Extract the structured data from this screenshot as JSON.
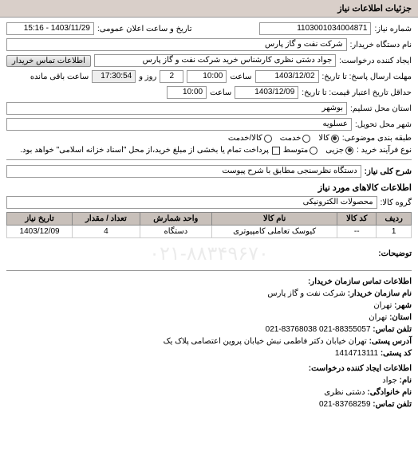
{
  "headerTitle": "جزئیات اطلاعات نیاز",
  "labels": {
    "reqNumber": "شماره نیاز:",
    "announceDate": "تاریخ و ساعت اعلان عمومی:",
    "buyerOrg": "نام دستگاه خریدار:",
    "creator": "ایجاد کننده درخواست:",
    "contactBtn": "اطلاعات تماس خریدار",
    "deadlineFrom": "مهلت ارسال پاسخ: تا تاریخ:",
    "hourWord": "ساعت",
    "dayWord": "روز و",
    "remainWord": "ساعت باقی مانده",
    "validFrom": "حداقل تاریخ اعتبار قیمت: تا تاریخ:",
    "province": "استان محل تسلیم:",
    "city": "شهر محل تحویل:",
    "category": "طبقه بندی موضوعی:",
    "processType": "نوع فرآیند خرید :",
    "processNote": "پرداخت تمام یا بخشی از مبلغ خرید،از محل \"اسناد خزانه اسلامی\" خواهد بود.",
    "descTitle": "شرح کلی نیاز:",
    "itemsTitle": "اطلاعات کالاهای مورد نیاز",
    "itemGroup": "گروه کالا:",
    "notesLabel": "توضیحات:",
    "contactHeader": "اطلاعات تماس سازمان خریدار:",
    "orgNameLbl": "نام سازمان خریدار:",
    "cityLbl": "شهر:",
    "provinceLbl": "استان:",
    "phoneLbl": "تلفن تماس:",
    "addressLbl": "آدرس پستی:",
    "postalLbl": "کد پستی:",
    "creatorHeader": "اطلاعات ایجاد کننده درخواست:",
    "fnameLbl": "نام:",
    "lnameLbl": "نام خانوادگی:",
    "phone2Lbl": "تلفن تماس:"
  },
  "values": {
    "reqNumber": "1103001034004871",
    "announceDate": "1403/11/29 - 15:16",
    "buyerOrg": "شرکت نفت و گاز پارس",
    "creator": "جواد دشتی نظری کارشناس خرید  شرکت نفت و گاز پارس",
    "deadlineDate": "1403/12/02",
    "deadlineHour": "10:00",
    "remainDays": "2",
    "remainTime": "17:30:54",
    "validDate": "1403/12/09",
    "validHour": "10:00",
    "province": "بوشهر",
    "city": "عسلویه",
    "desc": "دستگاه نظرسنجی مطابق با شرح پیوست",
    "itemGroup": "محصولات الکترونیکی"
  },
  "radios": {
    "category": [
      {
        "label": "کالا",
        "checked": true
      },
      {
        "label": "خدمت",
        "checked": false
      },
      {
        "label": "کالا/خدمت",
        "checked": false
      }
    ],
    "process": [
      {
        "label": "جزیی",
        "checked": true
      },
      {
        "label": "متوسط",
        "checked": false
      }
    ]
  },
  "table": {
    "headers": [
      "ردیف",
      "کد کالا",
      "نام کالا",
      "واحد شمارش",
      "تعداد / مقدار",
      "تاریخ نیاز"
    ],
    "rows": [
      [
        "1",
        "--",
        "کیوسک تعاملی کامپیوتری",
        "دستگاه",
        "4",
        "1403/12/09"
      ]
    ]
  },
  "watermark": "۰۲۱-۸۸۳۴۹۶۷۰",
  "contact": {
    "orgName": "شرکت نفت و گاز پارس",
    "city": "تهران",
    "province": "تهران",
    "phone": "88355057-021   83768038-021",
    "address": "تهران خیابان دکتر فاطمی نبش خیابان پروین اعتصامی پلاک یک",
    "postal": "1414713111"
  },
  "creatorInfo": {
    "fname": "جواد",
    "lname": "دشتی نظری",
    "phone": "83768259-021"
  }
}
